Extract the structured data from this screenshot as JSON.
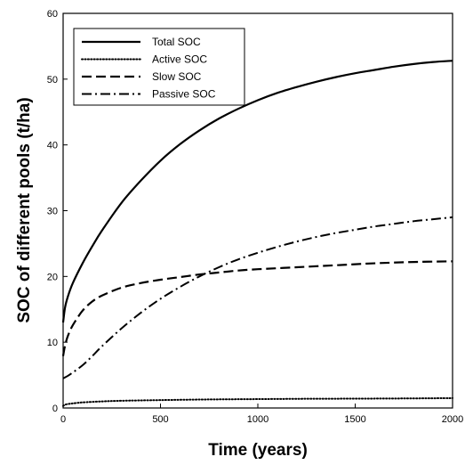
{
  "chart_data": {
    "type": "line",
    "xlabel": "Time (years)",
    "ylabel": "SOC of different pools (t/ha)",
    "xlim": [
      0,
      2000
    ],
    "ylim": [
      0,
      60
    ],
    "x_ticks": [
      0,
      500,
      1000,
      1500,
      2000
    ],
    "y_ticks": [
      0,
      10,
      20,
      30,
      40,
      50,
      60
    ],
    "x_tick_labels": [
      "0",
      "500",
      "1000",
      "1500",
      "2000"
    ],
    "y_tick_labels": [
      "0",
      "10",
      "20",
      "30",
      "40",
      "50",
      "60"
    ],
    "grid": false,
    "legend_position": "top-left",
    "series": [
      {
        "name": "Total SOC",
        "line_style": "solid",
        "x": [
          0,
          10,
          25,
          50,
          100,
          150,
          200,
          300,
          400,
          500,
          600,
          700,
          800,
          900,
          1000,
          1100,
          1200,
          1300,
          1400,
          1500,
          1600,
          1700,
          1800,
          1900,
          2000
        ],
        "y": [
          13.0,
          15.3,
          17.0,
          19.0,
          22.0,
          24.6,
          27.0,
          31.2,
          34.6,
          37.6,
          40.1,
          42.2,
          44.0,
          45.5,
          46.8,
          47.9,
          48.8,
          49.6,
          50.3,
          50.9,
          51.4,
          51.9,
          52.3,
          52.6,
          52.8
        ]
      },
      {
        "name": "Active SOC",
        "line_style": "dotted",
        "x": [
          0,
          10,
          25,
          50,
          100,
          200,
          300,
          500,
          750,
          1000,
          1250,
          1500,
          1750,
          2000
        ],
        "y": [
          0.3,
          0.5,
          0.6,
          0.7,
          0.85,
          1.0,
          1.1,
          1.2,
          1.3,
          1.35,
          1.4,
          1.42,
          1.45,
          1.5
        ]
      },
      {
        "name": "Slow  SOC",
        "line_style": "dashed",
        "x": [
          0,
          10,
          25,
          50,
          100,
          150,
          200,
          300,
          400,
          500,
          600,
          700,
          800,
          900,
          1000,
          1200,
          1400,
          1600,
          1800,
          2000
        ],
        "y": [
          7.9,
          9.5,
          11.0,
          12.6,
          14.8,
          16.2,
          17.1,
          18.3,
          19.0,
          19.5,
          19.9,
          20.3,
          20.6,
          20.9,
          21.1,
          21.4,
          21.7,
          22.0,
          22.2,
          22.3
        ]
      },
      {
        "name": "Passive SOC",
        "line_style": "dashdot",
        "x": [
          0,
          25,
          50,
          100,
          150,
          200,
          300,
          400,
          500,
          600,
          700,
          800,
          900,
          1000,
          1100,
          1200,
          1300,
          1400,
          1500,
          1600,
          1700,
          1800,
          1900,
          2000
        ],
        "y": [
          4.5,
          4.9,
          5.4,
          6.5,
          7.9,
          9.4,
          12.1,
          14.5,
          16.6,
          18.4,
          20.0,
          21.4,
          22.6,
          23.6,
          24.5,
          25.3,
          26.0,
          26.6,
          27.1,
          27.6,
          28.0,
          28.4,
          28.7,
          29.0
        ]
      }
    ]
  }
}
